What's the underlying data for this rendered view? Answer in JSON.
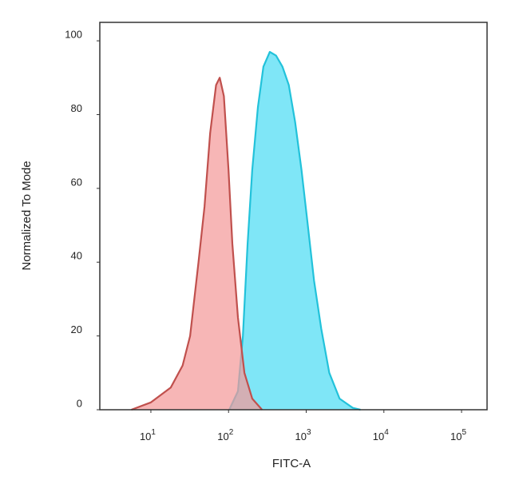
{
  "chart_data": {
    "type": "area",
    "xlabel": "FITC-A",
    "ylabel": "Normalized To Mode",
    "xscale": "log",
    "xlim": [
      2.2,
      213000
    ],
    "ylim": [
      0,
      105
    ],
    "xticks": [
      {
        "value": 10,
        "label": "10",
        "sup": "1"
      },
      {
        "value": 100,
        "label": "10",
        "sup": "2"
      },
      {
        "value": 1000,
        "label": "10",
        "sup": "3"
      },
      {
        "value": 10000,
        "label": "10",
        "sup": "4"
      },
      {
        "value": 100000,
        "label": "10",
        "sup": "5"
      }
    ],
    "yticks": [
      0,
      20,
      40,
      60,
      80,
      100
    ],
    "series": [
      {
        "color": "#7fe6f7",
        "stroke": "#22c2da",
        "x": [
          102,
          132,
          153,
          176,
          202,
          239,
          281,
          340,
          409,
          494,
          597,
          720,
          869,
          1048,
          1260,
          1560,
          1980,
          2690,
          3980,
          5000
        ],
        "values": [
          0,
          5,
          20,
          45,
          65,
          82,
          93,
          97,
          96,
          93,
          88,
          78,
          65,
          50,
          35,
          22,
          10,
          3,
          0.5,
          0
        ]
      },
      {
        "color": "#f49a9a",
        "stroke": "#c0504d",
        "x": [
          5.6,
          10,
          18,
          25.6,
          32,
          41,
          49,
          58,
          69,
          77,
          87,
          100,
          112,
          132,
          160,
          202,
          270
        ],
        "values": [
          0,
          2,
          6,
          12,
          20,
          40,
          55,
          75,
          88,
          90,
          85,
          65,
          45,
          25,
          10,
          3,
          0
        ]
      }
    ]
  }
}
